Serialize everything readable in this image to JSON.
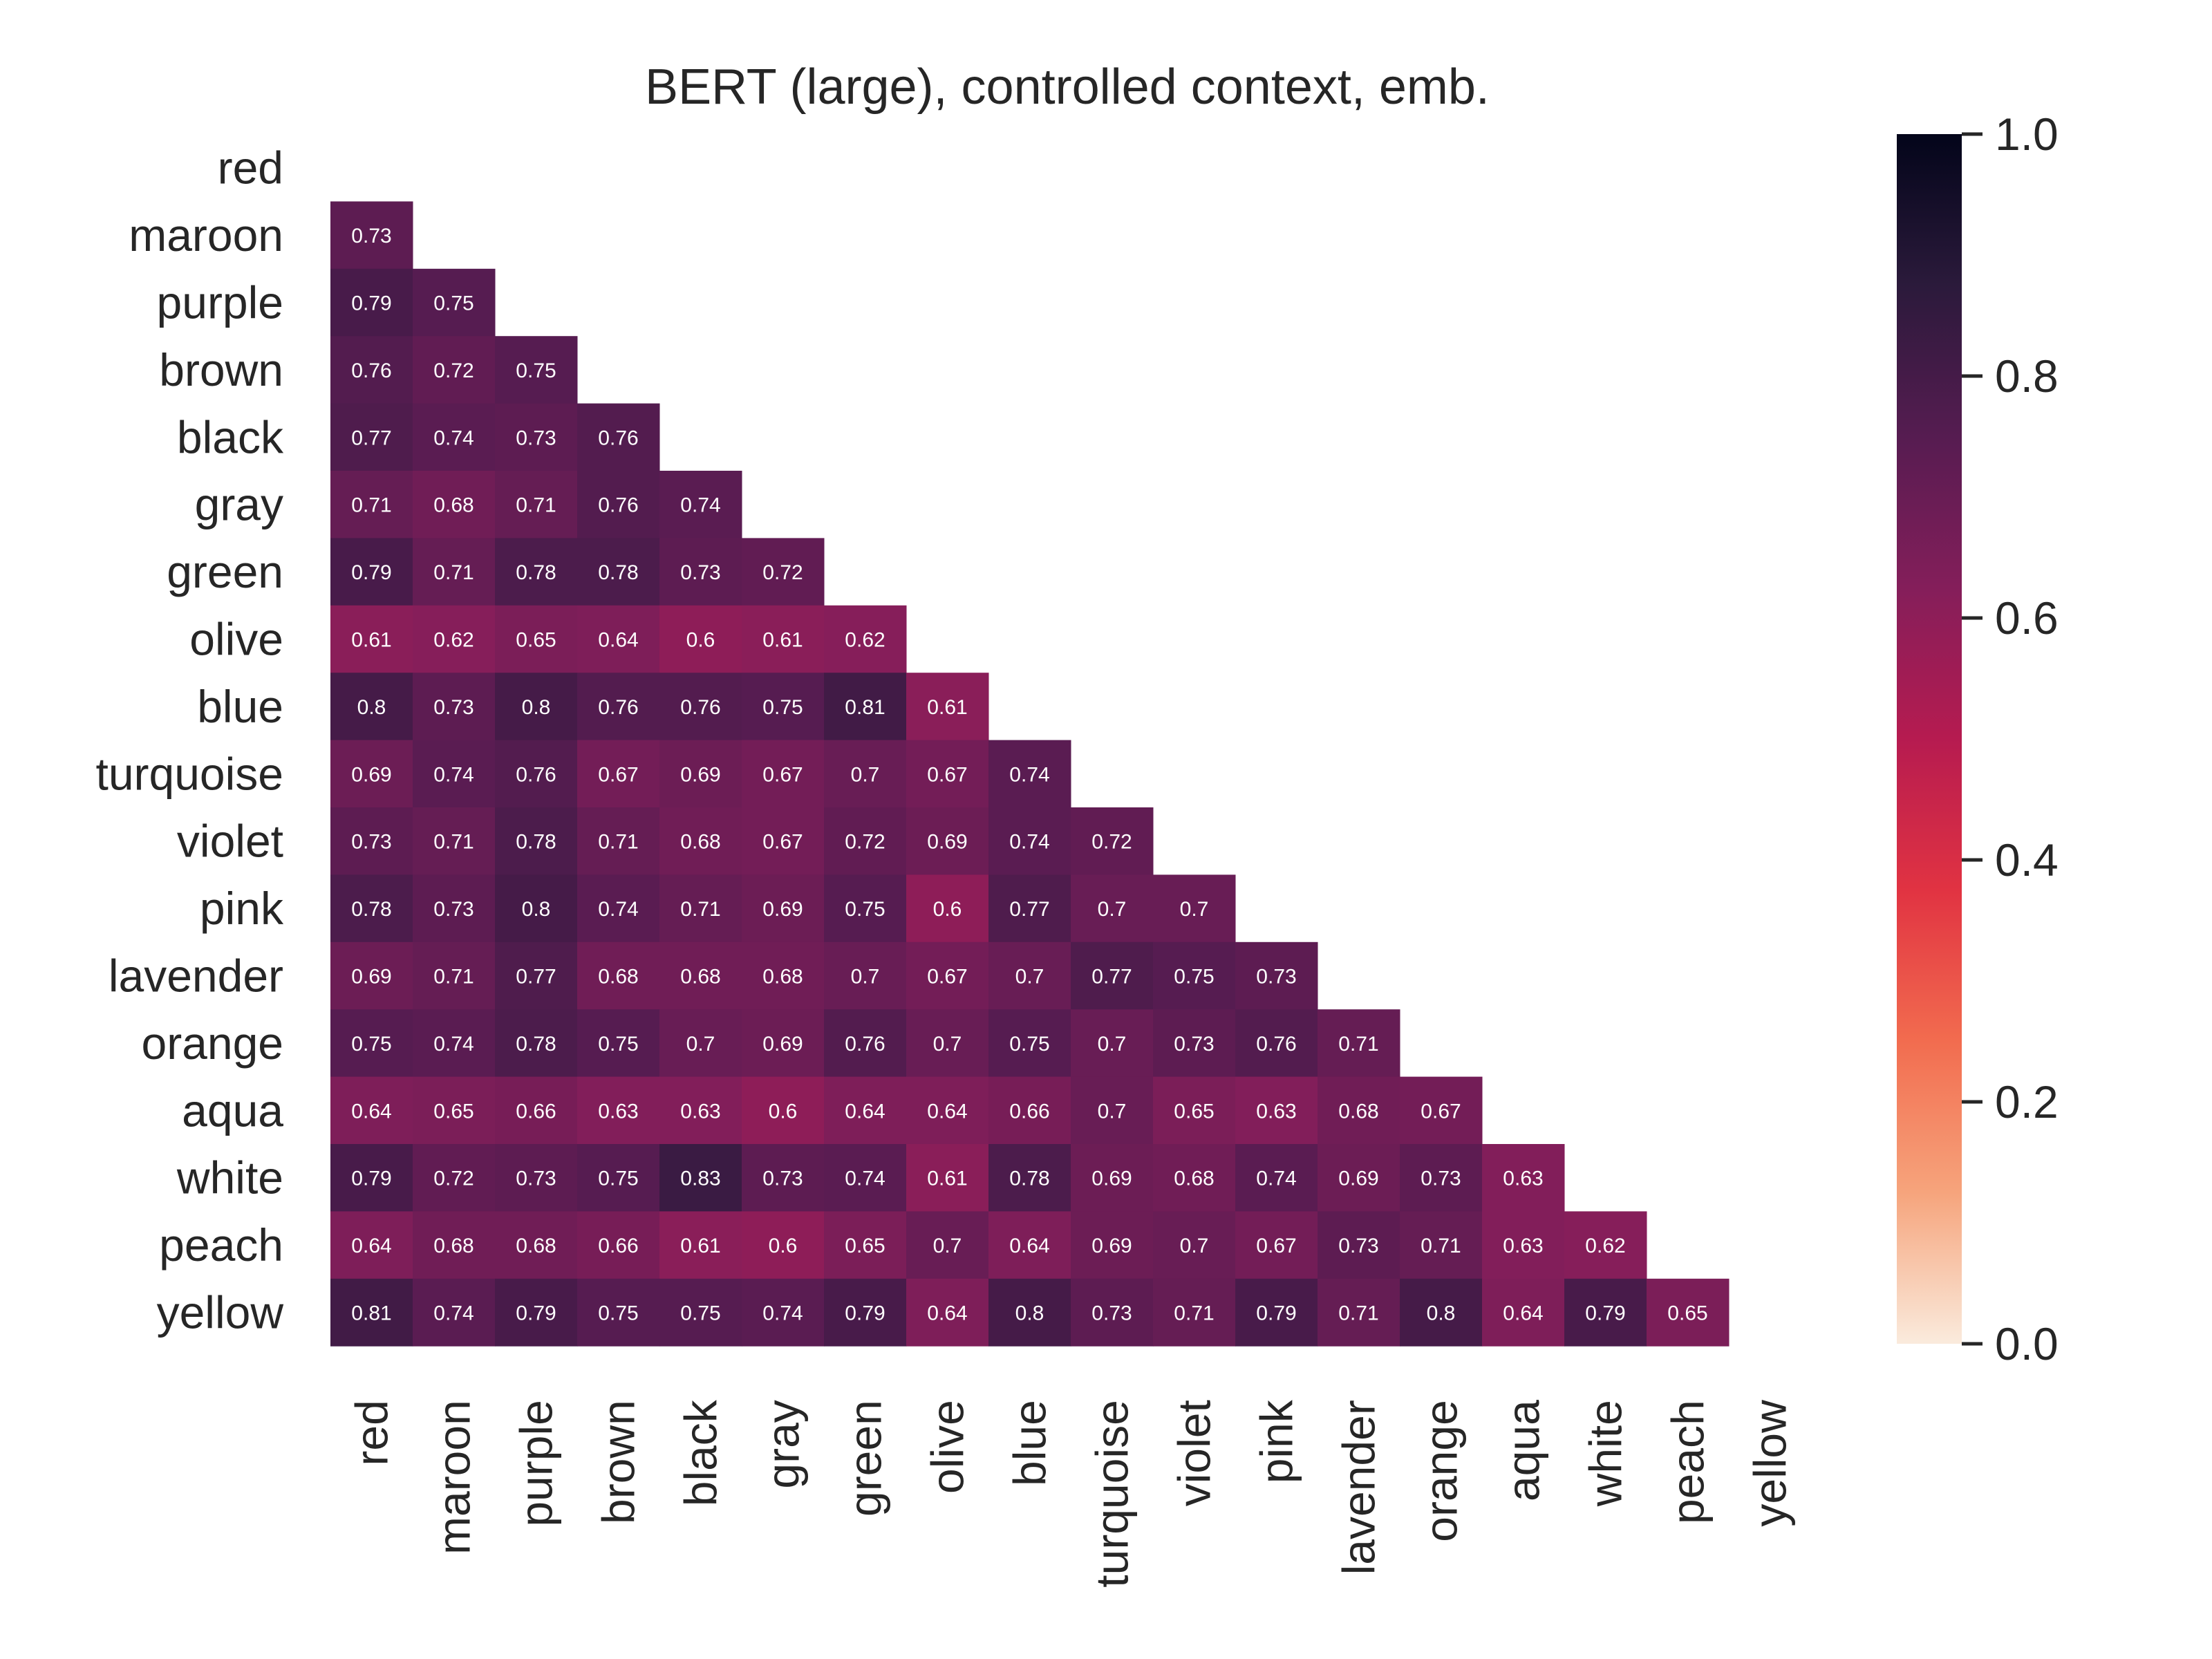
{
  "chart_data": {
    "type": "heatmap",
    "title": "BERT (large), controlled context, emb.",
    "labels": [
      "red",
      "maroon",
      "purple",
      "brown",
      "black",
      "gray",
      "green",
      "olive",
      "blue",
      "turquoise",
      "violet",
      "pink",
      "lavender",
      "orange",
      "aqua",
      "white",
      "peach",
      "yellow"
    ],
    "mask": "upper-triangle-including-diagonal",
    "rows": [
      [],
      [
        0.73
      ],
      [
        0.79,
        0.75
      ],
      [
        0.76,
        0.72,
        0.75
      ],
      [
        0.77,
        0.74,
        0.73,
        0.76
      ],
      [
        0.71,
        0.68,
        0.71,
        0.76,
        0.74
      ],
      [
        0.79,
        0.71,
        0.78,
        0.78,
        0.73,
        0.72
      ],
      [
        0.61,
        0.62,
        0.65,
        0.64,
        0.6,
        0.61,
        0.62
      ],
      [
        0.8,
        0.73,
        0.8,
        0.76,
        0.76,
        0.75,
        0.81,
        0.61
      ],
      [
        0.69,
        0.74,
        0.76,
        0.67,
        0.69,
        0.67,
        0.7,
        0.67,
        0.74
      ],
      [
        0.73,
        0.71,
        0.78,
        0.71,
        0.68,
        0.67,
        0.72,
        0.69,
        0.74,
        0.72
      ],
      [
        0.78,
        0.73,
        0.8,
        0.74,
        0.71,
        0.69,
        0.75,
        0.6,
        0.77,
        0.7,
        0.7
      ],
      [
        0.69,
        0.71,
        0.77,
        0.68,
        0.68,
        0.68,
        0.7,
        0.67,
        0.7,
        0.77,
        0.75,
        0.73
      ],
      [
        0.75,
        0.74,
        0.78,
        0.75,
        0.7,
        0.69,
        0.76,
        0.7,
        0.75,
        0.7,
        0.73,
        0.76,
        0.71
      ],
      [
        0.64,
        0.65,
        0.66,
        0.63,
        0.63,
        0.6,
        0.64,
        0.64,
        0.66,
        0.7,
        0.65,
        0.63,
        0.68,
        0.67
      ],
      [
        0.79,
        0.72,
        0.73,
        0.75,
        0.83,
        0.73,
        0.74,
        0.61,
        0.78,
        0.69,
        0.68,
        0.74,
        0.69,
        0.73,
        0.63
      ],
      [
        0.64,
        0.68,
        0.68,
        0.66,
        0.61,
        0.6,
        0.65,
        0.7,
        0.64,
        0.69,
        0.7,
        0.67,
        0.73,
        0.71,
        0.63,
        0.62
      ],
      [
        0.81,
        0.74,
        0.79,
        0.75,
        0.75,
        0.74,
        0.79,
        0.64,
        0.8,
        0.73,
        0.71,
        0.79,
        0.71,
        0.8,
        0.64,
        0.79,
        0.65
      ]
    ],
    "colorbar": {
      "range": [
        0.0,
        1.0
      ],
      "ticks": [
        "0.0",
        "0.2",
        "0.4",
        "0.6",
        "0.8",
        "1.0"
      ],
      "colormap": "rocket_r",
      "stops": [
        "#faebdd",
        "#f6a47c",
        "#f26c4f",
        "#e13342",
        "#b61b50",
        "#841e5a",
        "#561c51",
        "#2b1a3b",
        "#03051a"
      ]
    }
  }
}
